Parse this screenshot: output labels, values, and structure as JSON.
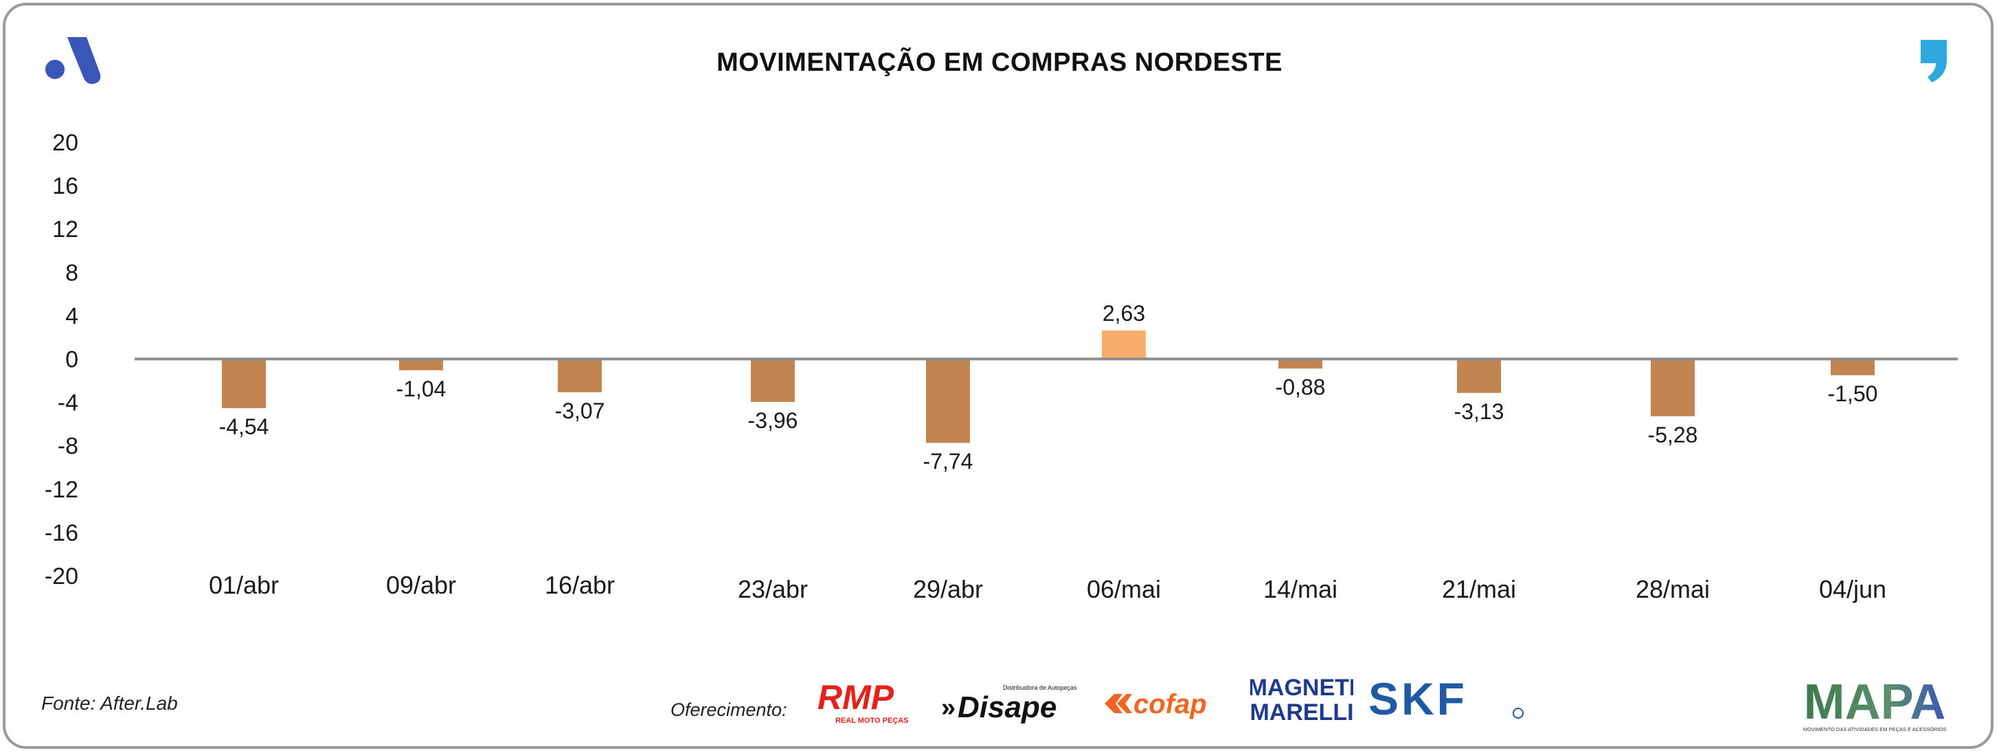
{
  "header": {
    "title": "MOVIMENTAÇÃO EM COMPRAS NORDESTE",
    "brand_icon": "after-lab-a-logo-icon",
    "corner_icon": "quote-mark-icon"
  },
  "footer": {
    "source": "Fonte: After.Lab",
    "sponsor_label": "Oferecimento:",
    "sponsors": {
      "rmp": {
        "name": "RMP",
        "tagline": "REAL MOTO PEÇAS"
      },
      "disape": {
        "name": "Disape",
        "tagline": "Distribuidora de Autopeças"
      },
      "cofap": {
        "name": "cofap"
      },
      "magneti": {
        "line1": "MAGNETI",
        "line2": "MARELLI"
      },
      "skf": {
        "name": "SKF"
      },
      "mapa": {
        "name": "MAPA",
        "tagline": "MOVIMENTO DAS ATIVIDADES EM PEÇAS E ACESSÓRIOS"
      }
    }
  },
  "colors": {
    "negative_bar": "#C28552",
    "positive_bar": "#F6AE6A",
    "baseline": "#8c8c8c",
    "brand_blue": "#3A56B8",
    "quote_blue": "#2FA8E0",
    "rmp_red": "#E2231A",
    "cofap_orange": "#F26522",
    "skf_blue": "#1F5AA6",
    "mapa_green": "#3E7A4E"
  },
  "chart_data": {
    "type": "bar",
    "title": "MOVIMENTAÇÃO EM COMPRAS NORDESTE",
    "xlabel": "",
    "ylabel": "",
    "categories": [
      "01/abr",
      "09/abr",
      "16/abr",
      "23/abr",
      "29/abr",
      "06/mai",
      "14/mai",
      "21/mai",
      "28/mai",
      "04/jun"
    ],
    "values": [
      -4.54,
      -1.04,
      -3.07,
      -3.96,
      -7.74,
      2.63,
      -0.88,
      -3.13,
      -5.28,
      -1.5
    ],
    "value_labels": [
      "-4,54",
      "-1,04",
      "-3,07",
      "-3,96",
      "-7,74",
      "2,63",
      "-0,88",
      "-3,13",
      "-5,28",
      "-1,50"
    ],
    "ylim": [
      -20,
      20
    ],
    "yticks": [
      20,
      16,
      12,
      8,
      4,
      0,
      -4,
      -8,
      -12,
      -16,
      -20
    ],
    "grid": false,
    "legend": "none"
  }
}
